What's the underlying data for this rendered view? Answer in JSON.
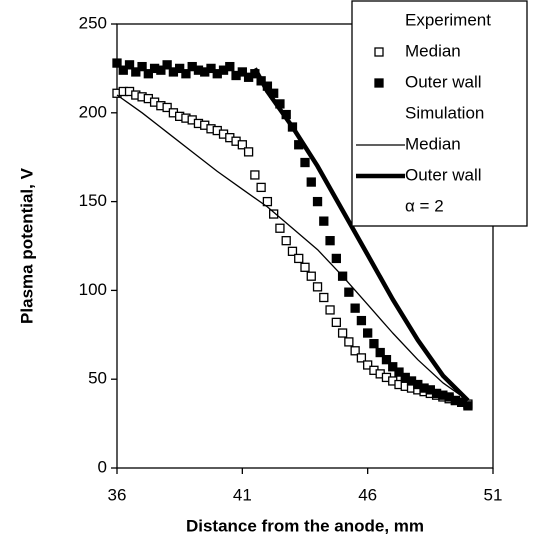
{
  "chart_data": {
    "type": "scatter",
    "xlabel": "Distance from the anode, mm",
    "ylabel": "Plasma potential, V",
    "xlim": [
      36,
      51
    ],
    "xticks": [
      36,
      41,
      46,
      51
    ],
    "ylim": [
      0,
      250
    ],
    "yticks": [
      0,
      50,
      100,
      150,
      200,
      250
    ],
    "legend": "upper right",
    "legend_titles": [
      "Experiment",
      "Simulation"
    ],
    "annotation": "α = 2",
    "series": [
      {
        "name": "Median",
        "type": "scatter",
        "marker": "open",
        "color": "#000000",
        "x": [
          36,
          36.25,
          36.5,
          36.75,
          37,
          37.25,
          37.5,
          37.75,
          38,
          38.25,
          38.5,
          38.75,
          39,
          39.25,
          39.5,
          39.75,
          40,
          40.25,
          40.5,
          40.75,
          41,
          41.25,
          41.5,
          41.75,
          42,
          42.25,
          42.5,
          42.75,
          43,
          43.25,
          43.5,
          43.75,
          44,
          44.25,
          44.5,
          44.75,
          45,
          45.25,
          45.5,
          45.75,
          46,
          46.25,
          46.5,
          46.75,
          47,
          47.25,
          47.5,
          47.75,
          48,
          48.25,
          48.5,
          48.75,
          49,
          49.25,
          49.5,
          49.75,
          50
        ],
        "values": [
          211,
          212,
          212,
          210,
          209,
          208,
          206,
          204,
          203,
          200,
          198,
          197,
          196,
          194,
          193,
          191,
          190,
          188,
          186,
          184,
          182,
          178,
          165,
          158,
          150,
          143,
          135,
          128,
          122,
          118,
          113,
          108,
          102,
          96,
          89,
          82,
          76,
          71,
          66,
          62,
          58,
          55,
          53,
          51,
          49,
          47,
          46,
          45,
          44,
          43,
          42,
          41,
          40,
          39,
          38,
          37,
          36
        ]
      },
      {
        "name": "Outer wall",
        "type": "scatter",
        "marker": "filled",
        "color": "#000000",
        "x": [
          36,
          36.25,
          36.5,
          36.75,
          37,
          37.25,
          37.5,
          37.75,
          38,
          38.25,
          38.5,
          38.75,
          39,
          39.25,
          39.5,
          39.75,
          40,
          40.25,
          40.5,
          40.75,
          41,
          41.25,
          41.5,
          41.75,
          42,
          42.25,
          42.5,
          42.75,
          43,
          43.25,
          43.5,
          43.75,
          44,
          44.25,
          44.5,
          44.75,
          45,
          45.25,
          45.5,
          45.75,
          46,
          46.25,
          46.5,
          46.75,
          47,
          47.25,
          47.5,
          47.75,
          48,
          48.25,
          48.5,
          48.75,
          49,
          49.25,
          49.5,
          49.75,
          50
        ],
        "values": [
          228,
          224,
          227,
          223,
          226,
          222,
          225,
          224,
          227,
          223,
          225,
          222,
          226,
          224,
          223,
          225,
          222,
          224,
          226,
          221,
          223,
          220,
          222,
          218,
          215,
          211,
          205,
          199,
          192,
          182,
          172,
          161,
          150,
          139,
          128,
          118,
          108,
          99,
          90,
          83,
          76,
          70,
          65,
          61,
          57,
          54,
          51,
          49,
          47,
          45,
          44,
          42,
          41,
          40,
          38,
          37,
          35
        ]
      },
      {
        "name": "Median",
        "type": "line",
        "linewidth": 1.3,
        "color": "#000000",
        "x": [
          36,
          37,
          38,
          39,
          40,
          41,
          42,
          43,
          44,
          45,
          46,
          47,
          48,
          49,
          50
        ],
        "values": [
          210,
          200,
          189,
          178,
          167,
          157,
          147,
          135,
          123,
          108,
          92,
          76,
          61,
          48,
          38
        ]
      },
      {
        "name": "Outer wall",
        "type": "line",
        "linewidth": 4.5,
        "color": "#000000",
        "x": [
          41.5,
          42,
          43,
          44,
          45,
          46,
          47,
          48,
          49,
          50
        ],
        "values": [
          225,
          212,
          192,
          170,
          145,
          120,
          95,
          72,
          52,
          38
        ]
      }
    ]
  }
}
